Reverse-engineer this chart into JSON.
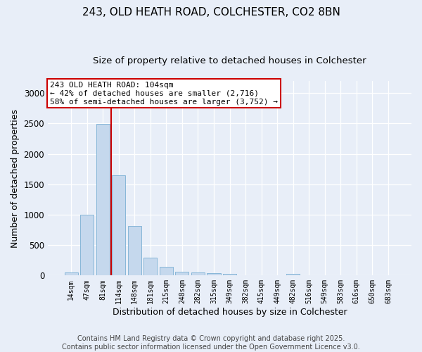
{
  "title": "243, OLD HEATH ROAD, COLCHESTER, CO2 8BN",
  "subtitle": "Size of property relative to detached houses in Colchester",
  "xlabel": "Distribution of detached houses by size in Colchester",
  "ylabel": "Number of detached properties",
  "categories": [
    "14sqm",
    "47sqm",
    "81sqm",
    "114sqm",
    "148sqm",
    "181sqm",
    "215sqm",
    "248sqm",
    "282sqm",
    "315sqm",
    "349sqm",
    "382sqm",
    "415sqm",
    "449sqm",
    "482sqm",
    "516sqm",
    "549sqm",
    "583sqm",
    "616sqm",
    "650sqm",
    "683sqm"
  ],
  "values": [
    50,
    1000,
    2490,
    1650,
    820,
    290,
    140,
    65,
    55,
    40,
    30,
    5,
    0,
    0,
    25,
    0,
    0,
    0,
    0,
    0,
    0
  ],
  "bar_color": "#c5d8ed",
  "bar_edge_color": "#7aafd4",
  "background_color": "#e8eef8",
  "grid_color": "#ffffff",
  "vline_color": "#cc0000",
  "annotation_text": "243 OLD HEATH ROAD: 104sqm\n← 42% of detached houses are smaller (2,716)\n58% of semi-detached houses are larger (3,752) →",
  "annotation_box_color": "#cc0000",
  "ylim": [
    0,
    3200
  ],
  "yticks": [
    0,
    500,
    1000,
    1500,
    2000,
    2500,
    3000
  ],
  "footer_text": "Contains HM Land Registry data © Crown copyright and database right 2025.\nContains public sector information licensed under the Open Government Licence v3.0.",
  "title_fontsize": 11,
  "subtitle_fontsize": 9.5,
  "xlabel_fontsize": 9,
  "ylabel_fontsize": 9,
  "annotation_fontsize": 8,
  "footer_fontsize": 7
}
